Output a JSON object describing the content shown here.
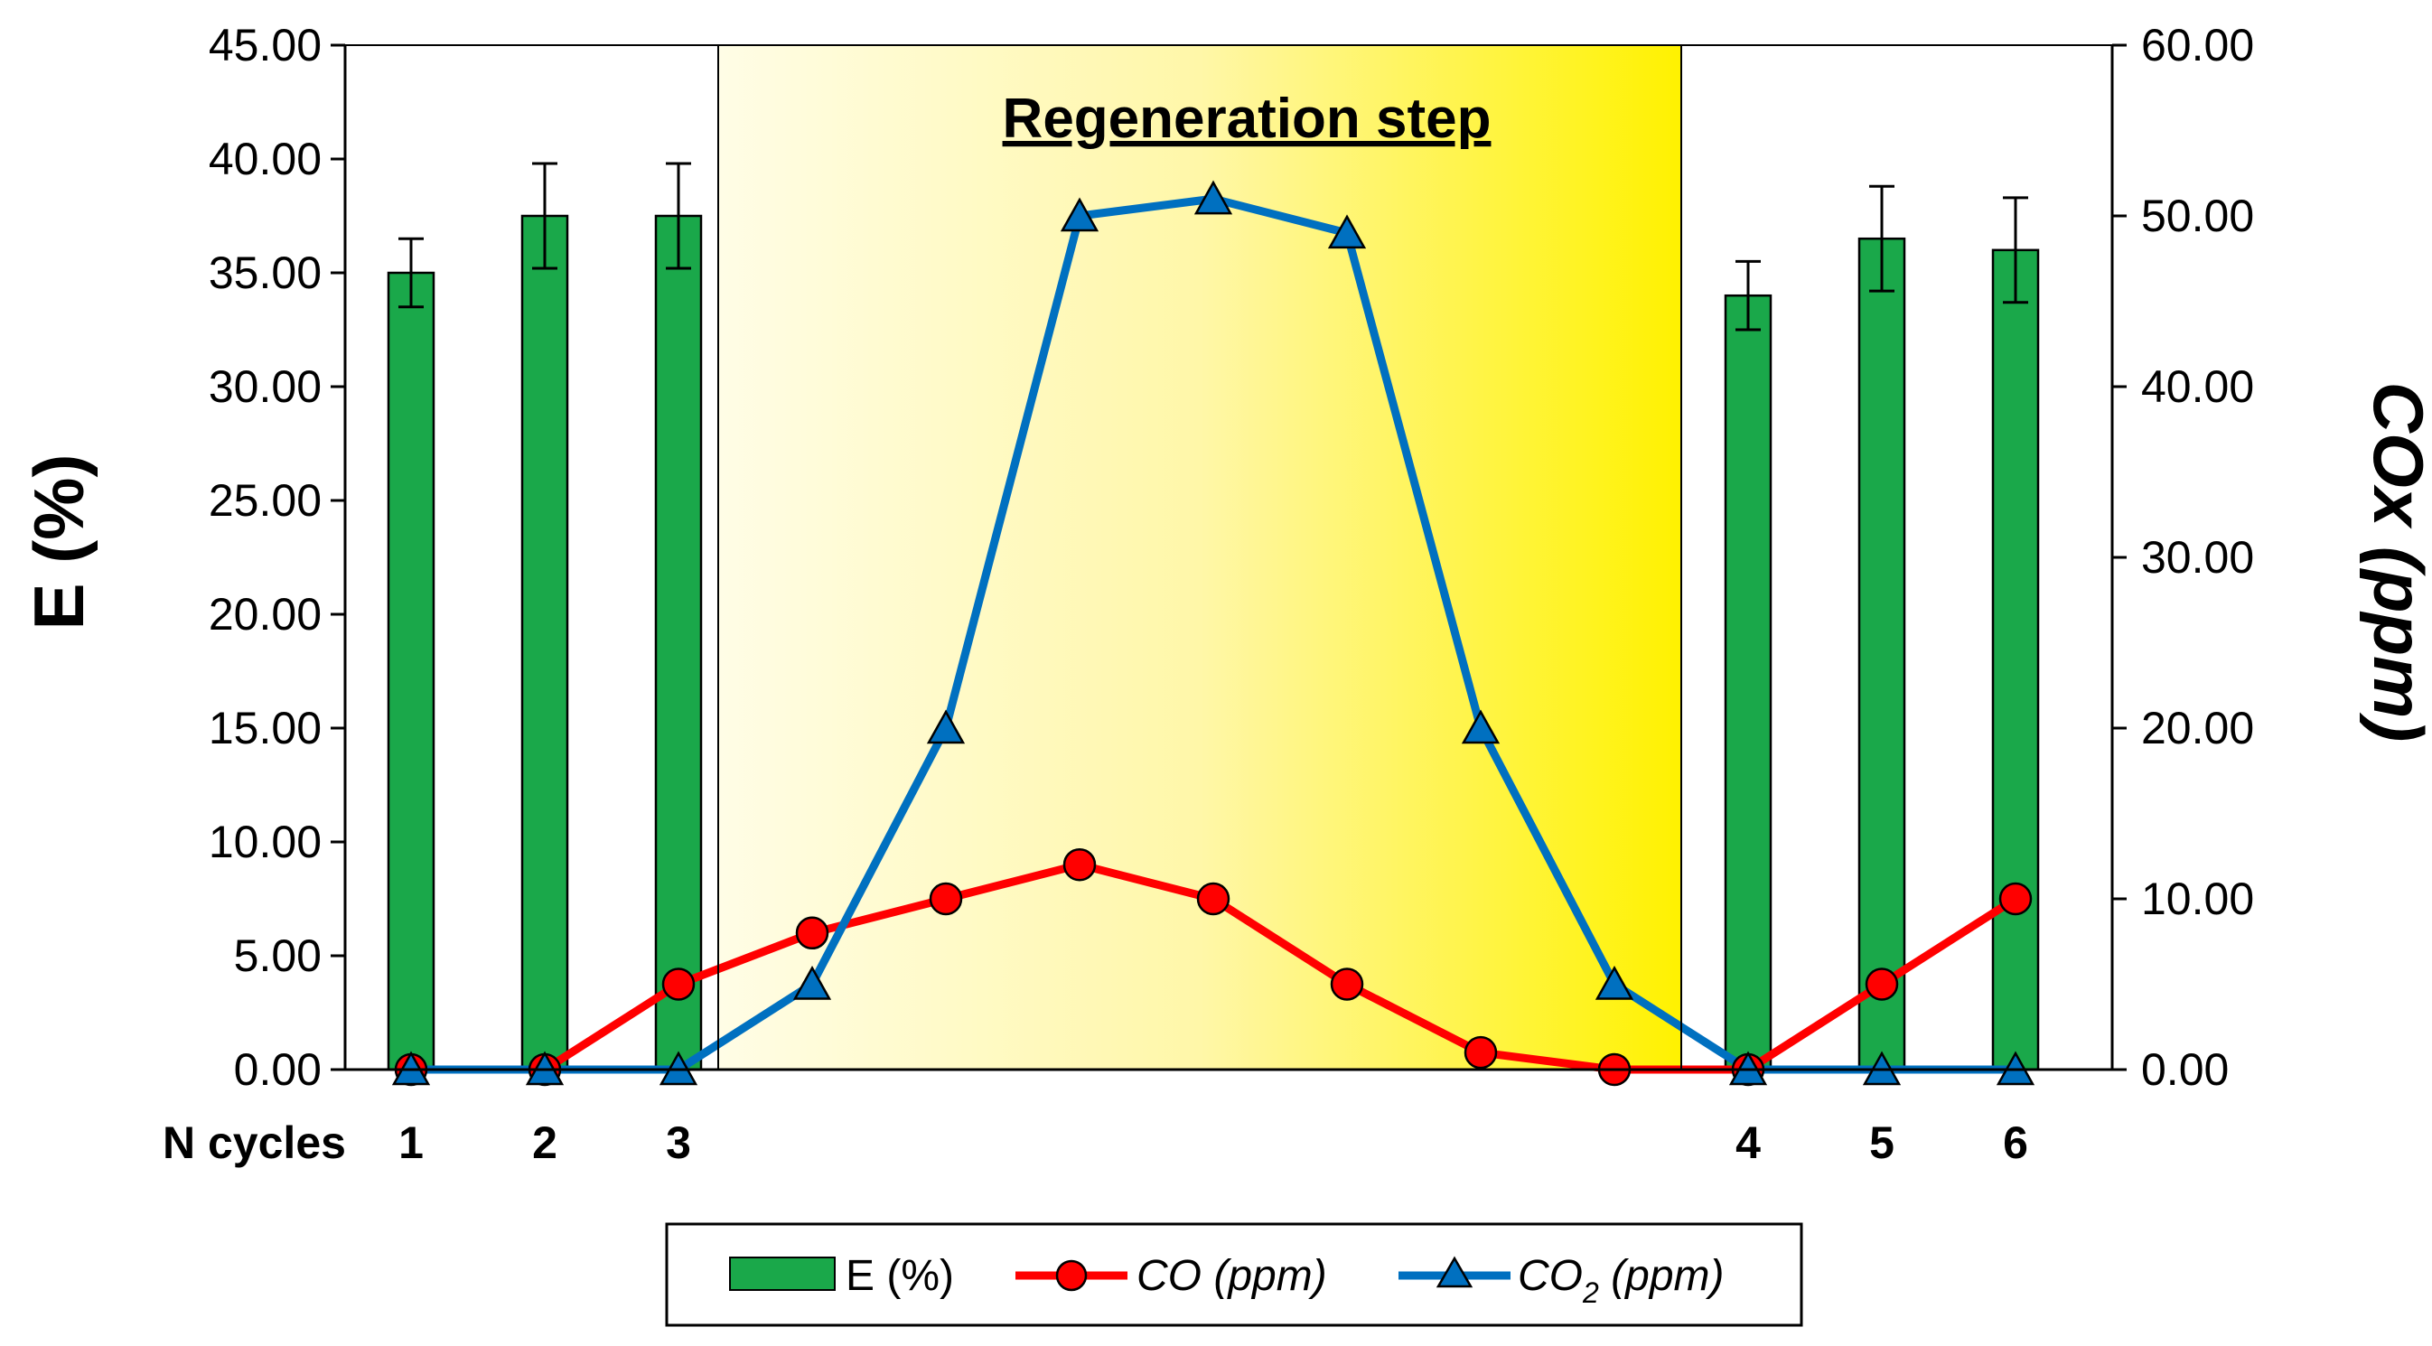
{
  "chart_data": {
    "type": "bar+line",
    "title": "",
    "y_left": {
      "label": "E (%)",
      "min": 0,
      "max": 45,
      "ticks": [
        "0.00",
        "5.00",
        "10.00",
        "15.00",
        "20.00",
        "25.00",
        "30.00",
        "35.00",
        "40.00",
        "45.00"
      ]
    },
    "y_right": {
      "label": "COx (ppm)",
      "min": 0,
      "max": 60,
      "ticks": [
        "0.00",
        "10.00",
        "20.00",
        "30.00",
        "40.00",
        "50.00",
        "60.00"
      ]
    },
    "x_label": "N cycles",
    "categories": [
      "1",
      "2",
      "3",
      "",
      "",
      "",
      "",
      "",
      "",
      "",
      "4",
      "5",
      "6"
    ],
    "region": {
      "label": "Regeneration step",
      "from_index": 3,
      "to_index": 9,
      "color": "#fff200"
    },
    "series": [
      {
        "name": "E (%)",
        "type": "bar",
        "axis": "left",
        "color": "#1aa84a",
        "values": [
          35.0,
          37.5,
          37.5,
          null,
          null,
          null,
          null,
          null,
          null,
          null,
          34.0,
          36.5,
          36.0
        ],
        "errors": [
          1.5,
          2.3,
          2.3,
          null,
          null,
          null,
          null,
          null,
          null,
          null,
          1.5,
          2.3,
          2.3
        ]
      },
      {
        "name": "CO (ppm)",
        "type": "line",
        "axis": "right",
        "color": "#ff0000",
        "marker": "circle",
        "values": [
          0,
          0,
          5,
          8,
          10,
          12,
          10,
          5,
          1,
          0,
          0,
          5,
          10
        ]
      },
      {
        "name": "CO2 (ppm)",
        "type": "line",
        "axis": "right",
        "color": "#0070c0",
        "marker": "triangle",
        "values": [
          0,
          0,
          0,
          5,
          20,
          50,
          51,
          49,
          20,
          5,
          0,
          0,
          0
        ]
      }
    ],
    "legend": {
      "position": "bottom-center",
      "items": [
        {
          "label": "E (%)",
          "italic": false
        },
        {
          "label_main": "CO (ppm)",
          "italic": true
        },
        {
          "label_main": "CO",
          "sub": "2",
          "label_rest": " (ppm)",
          "italic": true
        }
      ]
    }
  }
}
